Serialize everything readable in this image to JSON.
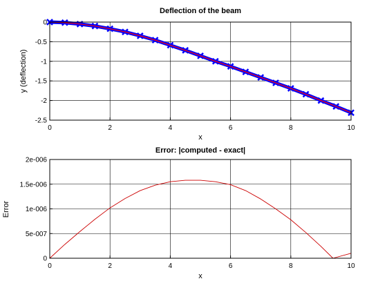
{
  "chart_data": [
    {
      "type": "line",
      "title": "Deflection of the beam",
      "xlabel": "x",
      "ylabel": "y (deflection)",
      "xlim": [
        0,
        10
      ],
      "ylim": [
        -2.5,
        0
      ],
      "x_ticks": [
        "0",
        "2",
        "4",
        "6",
        "8",
        "10"
      ],
      "y_ticks": [
        "0",
        "-0.5",
        "-1",
        "-1.5",
        "-2",
        "-2.5"
      ],
      "grid": true,
      "series": [
        {
          "kind": "computed",
          "color": "#0000ff",
          "marker": "x",
          "x": [
            0,
            0.5,
            1,
            1.5,
            2,
            2.5,
            3,
            3.5,
            4,
            4.5,
            5,
            5.5,
            6,
            6.5,
            7,
            7.5,
            8,
            8.5,
            9,
            9.5,
            10
          ],
          "y": [
            0,
            -0.014,
            -0.05,
            -0.1,
            -0.17,
            -0.25,
            -0.35,
            -0.46,
            -0.59,
            -0.72,
            -0.86,
            -1.0,
            -1.13,
            -1.27,
            -1.41,
            -1.55,
            -1.69,
            -1.84,
            -2.0,
            -2.15,
            -2.31
          ]
        },
        {
          "kind": "exact",
          "color": "#ff0000",
          "marker": "none",
          "x": [
            0,
            0.5,
            1,
            1.5,
            2,
            2.5,
            3,
            3.5,
            4,
            4.5,
            5,
            5.5,
            6,
            6.5,
            7,
            7.5,
            8,
            8.5,
            9,
            9.5,
            10
          ],
          "y": [
            0,
            -0.014,
            -0.05,
            -0.1,
            -0.17,
            -0.25,
            -0.35,
            -0.46,
            -0.59,
            -0.72,
            -0.86,
            -1.0,
            -1.13,
            -1.27,
            -1.41,
            -1.55,
            -1.69,
            -1.84,
            -2.0,
            -2.15,
            -2.31
          ]
        }
      ]
    },
    {
      "type": "line",
      "title": "Error: |computed - exact|",
      "xlabel": "x",
      "ylabel": "Error",
      "xlim": [
        0,
        10
      ],
      "ylim": [
        0,
        2e-06
      ],
      "x_ticks": [
        "0",
        "2",
        "4",
        "6",
        "8",
        "10"
      ],
      "y_ticks": [
        "0",
        "5e-007",
        "1e-006",
        "1.5e-006",
        "2e-006"
      ],
      "grid": true,
      "series": [
        {
          "color": "#cc0000",
          "x": [
            0,
            0.5,
            1,
            1.5,
            2,
            2.5,
            3,
            3.5,
            4,
            4.5,
            5,
            5.5,
            6,
            6.5,
            7,
            7.5,
            8,
            8.5,
            9,
            9.4,
            10
          ],
          "y": [
            0,
            2.8e-07,
            5.4e-07,
            7.9e-07,
            1.02e-06,
            1.21e-06,
            1.37e-06,
            1.48e-06,
            1.55e-06,
            1.58e-06,
            1.58e-06,
            1.55e-06,
            1.49e-06,
            1.37e-06,
            1.2e-06,
            1e-06,
            7.8e-07,
            5.2e-07,
            2.4e-07,
            0,
            1e-07
          ]
        }
      ]
    }
  ]
}
